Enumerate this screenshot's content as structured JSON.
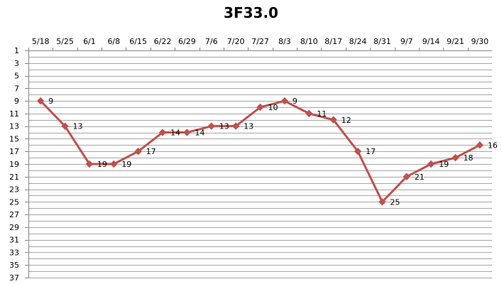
{
  "chart_data": {
    "type": "line",
    "title": "3F33.0",
    "xlabel": "",
    "ylabel": "",
    "y_reversed": true,
    "ylim": [
      1,
      37
    ],
    "yticks": [
      1,
      3,
      5,
      7,
      9,
      11,
      13,
      15,
      17,
      19,
      21,
      23,
      25,
      27,
      29,
      31,
      33,
      35,
      37
    ],
    "x_axis_position": "top",
    "grid": true,
    "legend": "none",
    "categories": [
      "5/18",
      "5/25",
      "6/1",
      "6/8",
      "6/15",
      "6/22",
      "6/29",
      "7/6",
      "7/20",
      "7/27",
      "8/3",
      "8/10",
      "8/17",
      "8/24",
      "8/31",
      "9/7",
      "9/14",
      "9/21",
      "9/30"
    ],
    "series": [
      {
        "values": [
          9,
          13,
          19,
          19,
          17,
          14,
          14,
          13,
          13,
          10,
          9,
          11,
          12,
          17,
          25,
          21,
          19,
          18,
          16
        ],
        "color": "#c0504d",
        "marker": "diamond"
      }
    ]
  }
}
